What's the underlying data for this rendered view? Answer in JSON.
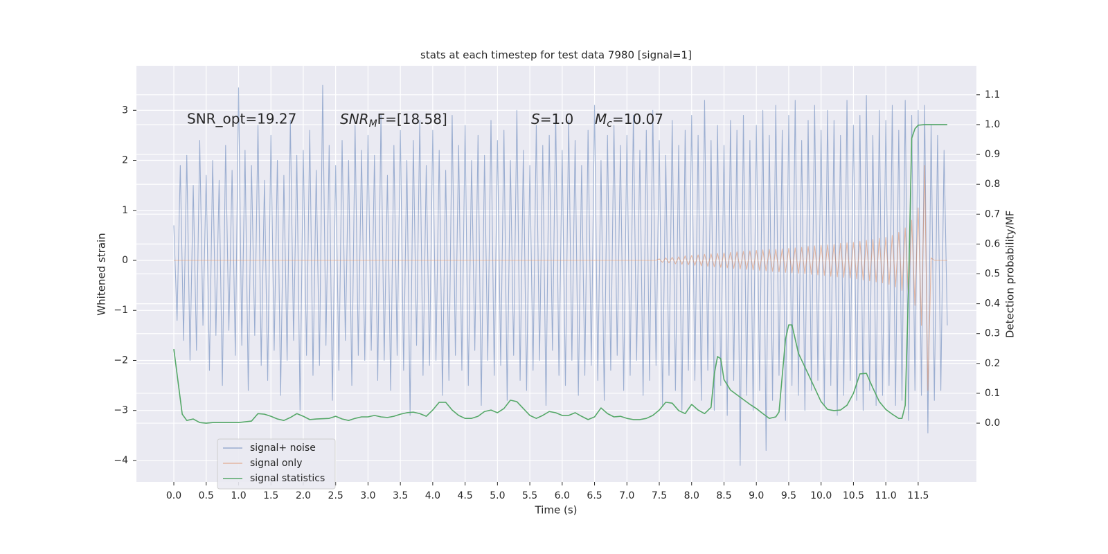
{
  "chart_data": {
    "type": "line",
    "title": "stats at each timestep for test data 7980 [signal=1]",
    "x_label": "Time (s)",
    "y_label": "Whitened strain",
    "y2_label": "Detection probability/MF",
    "annotations": [
      [
        "SNR_opt=19.27"
      ],
      [
        "SNR",
        "M",
        "F=[18.58]"
      ],
      [
        "S",
        "=1.0"
      ],
      [
        "M",
        "c",
        "=10.07"
      ]
    ],
    "grid": true,
    "legend": "lower left",
    "xlim": [
      -0.578,
      12.4
    ],
    "xticks": [
      {
        "value": 0,
        "label": "0.0"
      },
      0.5,
      {
        "value": 1,
        "label": "1.0"
      },
      1.5,
      {
        "value": 2,
        "label": "2.0"
      },
      2.5,
      {
        "value": 3,
        "label": "3.0"
      },
      3.5,
      {
        "value": 4,
        "label": "4.0"
      },
      4.5,
      {
        "value": 5,
        "label": "5.0"
      },
      5.5,
      {
        "value": 6,
        "label": "6.0"
      },
      6.5,
      {
        "value": 7,
        "label": "7.0"
      },
      7.5,
      {
        "value": 8,
        "label": "8.0"
      },
      8.5,
      {
        "value": 9,
        "label": "9.0"
      },
      9.5,
      {
        "value": 10,
        "label": "10.0"
      },
      10.5,
      {
        "value": 11,
        "label": "11.0"
      },
      11.5
    ],
    "ylim": [
      -4.43,
      3.89
    ],
    "yticks": [
      {
        "value": -4,
        "label": "−4"
      },
      {
        "value": -3,
        "label": "−3"
      },
      {
        "value": -2,
        "label": "−2"
      },
      {
        "value": -1,
        "label": "−1"
      },
      0,
      1,
      2,
      3
    ],
    "y2lim": [
      -0.197,
      1.197
    ],
    "y2ticks": [
      {
        "value": 0,
        "label": "0.0"
      },
      0.1,
      0.2,
      0.3,
      0.4,
      0.5,
      0.6,
      0.7,
      0.8,
      0.9,
      {
        "value": 1,
        "label": "1.0"
      },
      1.1
    ],
    "x": [
      0,
      0.05,
      0.1,
      0.15,
      0.2,
      0.25,
      0.3,
      0.35,
      0.4,
      0.45,
      0.5,
      0.55,
      0.6,
      0.65,
      0.7,
      0.75,
      0.8,
      0.85,
      0.9,
      0.95,
      1,
      1.05,
      1.1,
      1.15,
      1.2,
      1.25,
      1.3,
      1.35,
      1.4,
      1.45,
      1.5,
      1.55,
      1.6,
      1.65,
      1.7,
      1.75,
      1.8,
      1.85,
      1.9,
      1.95,
      2,
      2.05,
      2.1,
      2.15,
      2.2,
      2.25,
      2.3,
      2.35,
      2.4,
      2.45,
      2.5,
      2.55,
      2.6,
      2.65,
      2.7,
      2.75,
      2.8,
      2.85,
      2.9,
      2.95,
      3,
      3.05,
      3.1,
      3.15,
      3.2,
      3.25,
      3.3,
      3.35,
      3.4,
      3.45,
      3.5,
      3.55,
      3.6,
      3.65,
      3.7,
      3.75,
      3.8,
      3.85,
      3.9,
      3.95,
      4,
      4.05,
      4.1,
      4.15,
      4.2,
      4.25,
      4.3,
      4.35,
      4.4,
      4.45,
      4.5,
      4.55,
      4.6,
      4.65,
      4.7,
      4.75,
      4.8,
      4.85,
      4.9,
      4.95,
      5,
      5.05,
      5.1,
      5.15,
      5.2,
      5.25,
      5.3,
      5.35,
      5.4,
      5.45,
      5.5,
      5.55,
      5.6,
      5.65,
      5.7,
      5.75,
      5.8,
      5.85,
      5.9,
      5.95,
      6,
      6.05,
      6.1,
      6.15,
      6.2,
      6.25,
      6.3,
      6.35,
      6.4,
      6.45,
      6.5,
      6.55,
      6.6,
      6.65,
      6.7,
      6.75,
      6.8,
      6.85,
      6.9,
      6.95,
      7,
      7.05,
      7.1,
      7.15,
      7.2,
      7.25,
      7.3,
      7.35,
      7.4,
      7.45,
      7.5,
      7.55,
      7.6,
      7.65,
      7.7,
      7.75,
      7.8,
      7.85,
      7.9,
      7.95,
      8,
      8.05,
      8.1,
      8.15,
      8.2,
      8.25,
      8.3,
      8.35,
      8.4,
      8.45,
      8.5,
      8.55,
      8.6,
      8.65,
      8.7,
      8.75,
      8.8,
      8.85,
      8.9,
      8.95,
      9,
      9.05,
      9.1,
      9.15,
      9.2,
      9.25,
      9.3,
      9.35,
      9.4,
      9.45,
      9.5,
      9.55,
      9.6,
      9.65,
      9.7,
      9.75,
      9.8,
      9.85,
      9.9,
      9.95,
      10,
      10.05,
      10.1,
      10.15,
      10.2,
      10.25,
      10.3,
      10.35,
      10.4,
      10.45,
      10.5,
      10.55,
      10.6,
      10.65,
      10.7,
      10.75,
      10.8,
      10.85,
      10.9,
      10.95,
      11,
      11.05,
      11.1,
      11.15,
      11.2,
      11.25,
      11.3,
      11.35,
      11.4,
      11.45,
      11.5,
      11.55,
      11.6,
      11.65,
      11.7,
      11.75,
      11.8,
      11.85,
      11.9,
      11.95
    ],
    "series": [
      {
        "name": "signal+ noise",
        "color": "#4c72b0",
        "values": [
          0.7,
          -1.2,
          1.9,
          -1.6,
          2.1,
          -2.0,
          1.5,
          -1.8,
          2.4,
          -1.3,
          1.7,
          -2.2,
          2.0,
          -1.5,
          1.6,
          -2.5,
          2.3,
          -1.4,
          1.8,
          -1.9,
          3.45,
          -1.7,
          2.2,
          -2.6,
          1.9,
          -1.5,
          2.7,
          -2.1,
          1.6,
          -2.4,
          2.5,
          -1.8,
          2.0,
          -2.7,
          1.7,
          -2.0,
          2.8,
          -1.6,
          2.1,
          -3.0,
          2.2,
          -1.9,
          2.6,
          -2.3,
          1.8,
          -2.1,
          3.5,
          -1.7,
          2.3,
          -2.8,
          1.9,
          -2.2,
          2.4,
          -1.6,
          2.0,
          -2.5,
          2.7,
          -1.9,
          2.2,
          -2.0,
          2.5,
          -1.8,
          2.1,
          -2.4,
          2.9,
          -2.0,
          1.7,
          -2.6,
          2.3,
          -1.9,
          2.6,
          -2.2,
          2.0,
          -3.1,
          2.4,
          -1.7,
          2.8,
          -2.3,
          1.9,
          -2.1,
          2.6,
          -2.0,
          2.2,
          -2.7,
          1.8,
          -2.4,
          2.9,
          -1.9,
          2.3,
          -2.2,
          2.7,
          -2.5,
          2.0,
          -1.8,
          2.5,
          -2.9,
          2.1,
          -2.0,
          2.8,
          -2.3,
          2.4,
          -2.1,
          2.6,
          -2.8,
          2.0,
          -1.9,
          3.0,
          -2.4,
          2.2,
          -2.6,
          1.9,
          -2.2,
          2.7,
          -2.0,
          2.3,
          -2.9,
          2.5,
          -1.8,
          2.9,
          -2.3,
          2.2,
          -2.5,
          2.8,
          -2.0,
          2.4,
          -2.7,
          1.9,
          -2.3,
          2.6,
          -2.1,
          3.1,
          -2.4,
          2.0,
          -2.8,
          2.5,
          -2.2,
          2.7,
          -1.9,
          2.3,
          -2.6,
          2.5,
          -2.3,
          2.9,
          -2.0,
          2.2,
          -2.7,
          2.6,
          -2.4,
          3.0,
          -2.1,
          2.4,
          -2.9,
          2.1,
          -2.3,
          2.8,
          -2.6,
          2.3,
          -3.0,
          2.6,
          -2.2,
          2.9,
          -2.4,
          2.5,
          -2.8,
          3.2,
          -2.2,
          2.4,
          -3.0,
          2.7,
          -2.5,
          2.3,
          -3.1,
          2.8,
          -2.4,
          2.6,
          -4.1,
          2.9,
          -2.7,
          2.4,
          -3.0,
          2.7,
          -2.6,
          3.0,
          -3.8,
          2.5,
          -2.8,
          3.1,
          -2.3,
          2.6,
          -3.2,
          2.9,
          -2.5,
          3.2,
          -2.7,
          2.4,
          -3.0,
          2.8,
          -2.6,
          3.1,
          -2.4,
          2.6,
          -2.9,
          3.0,
          -2.5,
          2.8,
          -3.1,
          2.5,
          -2.7,
          3.2,
          -2.4,
          2.7,
          -2.8,
          2.9,
          -3.0,
          3.3,
          -2.6,
          2.5,
          -2.9,
          3.0,
          -2.7,
          2.8,
          -2.5,
          3.1,
          -2.9,
          2.6,
          -2.8,
          3.2,
          -3.2,
          2.9,
          -2.6,
          3.0,
          -2.7,
          3.1,
          -3.45,
          2.7,
          -2.8,
          2.5,
          -2.6,
          2.2,
          -1.3
        ]
      },
      {
        "name": "signal only",
        "color": "#dd8452",
        "values": [
          0,
          0,
          0,
          0,
          0,
          0,
          0,
          0,
          0,
          0,
          0,
          0,
          0,
          0,
          0,
          0,
          0,
          0,
          0,
          0,
          0,
          0,
          0,
          0,
          0,
          0,
          0,
          0,
          0,
          0,
          0,
          0,
          0,
          0,
          0,
          0,
          0,
          0,
          0,
          0,
          0,
          0,
          0,
          0,
          0,
          0,
          0,
          0,
          0,
          0,
          0,
          0,
          0,
          0,
          0,
          0,
          0,
          0,
          0,
          0,
          0,
          0,
          0,
          0,
          0,
          0,
          0,
          0,
          0,
          0,
          0,
          0,
          0,
          0,
          0,
          0,
          0,
          0,
          0,
          0,
          0,
          0,
          0,
          0,
          0,
          0,
          0,
          0,
          0,
          0,
          0,
          0,
          0,
          0,
          0,
          0,
          0,
          0,
          0,
          0,
          0,
          0,
          0,
          0,
          0,
          0,
          0,
          0,
          0,
          0,
          0,
          0,
          0,
          0,
          0,
          0,
          0,
          0,
          0,
          0,
          0,
          0,
          0,
          0,
          0,
          0,
          0,
          0,
          0,
          0,
          0,
          0,
          0,
          0,
          0,
          0,
          0,
          0,
          0,
          0,
          0,
          0,
          0,
          0,
          0,
          0,
          0,
          0,
          0,
          0,
          0.03,
          -0.04,
          0.05,
          -0.05,
          0.06,
          -0.07,
          0.07,
          -0.08,
          0.09,
          -0.09,
          0.1,
          -0.1,
          0.11,
          -0.11,
          0.12,
          -0.12,
          0.13,
          -0.13,
          0.14,
          -0.14,
          0.15,
          -0.15,
          0.16,
          -0.16,
          0.17,
          -0.17,
          0.18,
          -0.18,
          0.19,
          -0.19,
          0.2,
          -0.2,
          0.21,
          -0.21,
          0.22,
          -0.22,
          0.22,
          -0.23,
          0.23,
          -0.24,
          0.24,
          -0.25,
          0.25,
          -0.26,
          0.26,
          -0.27,
          0.28,
          -0.28,
          0.29,
          -0.29,
          0.3,
          -0.3,
          0.31,
          -0.32,
          0.32,
          -0.33,
          0.34,
          -0.34,
          0.35,
          -0.35,
          0.36,
          -0.37,
          0.38,
          -0.39,
          0.4,
          -0.41,
          0.42,
          -0.43,
          0.44,
          -0.45,
          0.46,
          -0.48,
          0.5,
          -0.53,
          0.56,
          -0.6,
          0.65,
          -0.72,
          0.8,
          -0.9,
          1.05,
          -1.3,
          1.9,
          -2.6,
          0.05,
          0,
          0,
          0,
          0,
          0
        ]
      },
      {
        "name": "signal statistics",
        "color": "#55a868",
        "axis": "y2",
        "x": [
          0,
          0.13,
          0.2,
          0.3,
          0.4,
          0.5,
          0.6,
          0.8,
          1.0,
          1.2,
          1.3,
          1.4,
          1.5,
          1.6,
          1.7,
          1.8,
          1.9,
          2.0,
          2.1,
          2.2,
          2.4,
          2.5,
          2.6,
          2.7,
          2.8,
          2.9,
          3.0,
          3.1,
          3.2,
          3.3,
          3.4,
          3.5,
          3.6,
          3.7,
          3.8,
          3.9,
          4.0,
          4.1,
          4.2,
          4.3,
          4.4,
          4.5,
          4.6,
          4.7,
          4.8,
          4.9,
          5.0,
          5.1,
          5.2,
          5.3,
          5.4,
          5.5,
          5.6,
          5.7,
          5.8,
          5.9,
          6.0,
          6.1,
          6.2,
          6.3,
          6.4,
          6.5,
          6.6,
          6.7,
          6.8,
          6.9,
          7.0,
          7.1,
          7.2,
          7.3,
          7.4,
          7.5,
          7.6,
          7.7,
          7.8,
          7.9,
          8.0,
          8.1,
          8.2,
          8.3,
          8.35,
          8.4,
          8.45,
          8.5,
          8.6,
          8.7,
          8.8,
          8.9,
          9.0,
          9.1,
          9.2,
          9.3,
          9.35,
          9.45,
          9.5,
          9.55,
          9.65,
          9.8,
          10.0,
          10.1,
          10.2,
          10.3,
          10.4,
          10.5,
          10.6,
          10.7,
          10.8,
          10.9,
          11.0,
          11.1,
          11.2,
          11.25,
          11.3,
          11.35,
          11.4,
          11.45,
          11.5,
          11.6,
          11.95
        ],
        "values": [
          0.248,
          0.03,
          0.009,
          0.014,
          0.002,
          0,
          0.002,
          0.002,
          0.002,
          0.007,
          0.032,
          0.03,
          0.023,
          0.014,
          0.009,
          0.019,
          0.032,
          0.023,
          0.012,
          0.014,
          0.016,
          0.023,
          0.014,
          0.009,
          0.016,
          0.021,
          0.021,
          0.026,
          0.021,
          0.019,
          0.023,
          0.03,
          0.035,
          0.037,
          0.032,
          0.023,
          0.044,
          0.07,
          0.07,
          0.044,
          0.026,
          0.016,
          0.016,
          0.023,
          0.039,
          0.044,
          0.035,
          0.049,
          0.077,
          0.072,
          0.049,
          0.026,
          0.016,
          0.026,
          0.039,
          0.035,
          0.026,
          0.026,
          0.035,
          0.023,
          0.012,
          0.021,
          0.051,
          0.032,
          0.021,
          0.023,
          0.016,
          0.012,
          0.012,
          0.016,
          0.026,
          0.044,
          0.07,
          0.067,
          0.042,
          0.032,
          0.063,
          0.044,
          0.032,
          0.053,
          0.165,
          0.223,
          0.216,
          0.146,
          0.111,
          0.095,
          0.079,
          0.063,
          0.049,
          0.032,
          0.016,
          0.021,
          0.037,
          0.281,
          0.329,
          0.329,
          0.234,
          0.165,
          0.072,
          0.046,
          0.042,
          0.044,
          0.06,
          0.1,
          0.165,
          0.167,
          0.118,
          0.072,
          0.046,
          0.03,
          0.016,
          0.016,
          0.06,
          0.443,
          0.954,
          0.986,
          0.998,
          1.0,
          1.0
        ]
      }
    ]
  }
}
